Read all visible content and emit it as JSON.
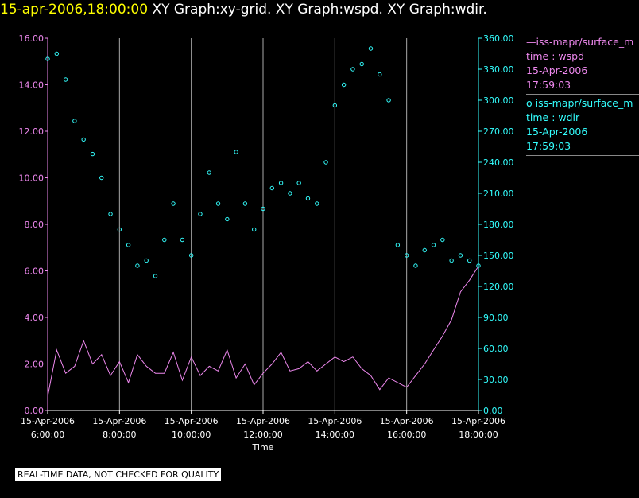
{
  "header": {
    "timestamp": "15-apr-2006,18:00:00",
    "titles": "XY Graph:xy-grid.  XY Graph:wspd.  XY Graph:wdir."
  },
  "legend": {
    "wspd": {
      "symbol": "—",
      "name": "iss-mapr/surface_m",
      "line2": "time : wspd",
      "line3": "15-Apr-2006",
      "line4": "17:59:03"
    },
    "wdir": {
      "symbol": "o",
      "name": "iss-mapr/surface_m",
      "line2": "time : wdir",
      "line3": "15-Apr-2006",
      "line4": "17:59:03"
    }
  },
  "disclaimer": "REAL-TIME DATA, NOT CHECKED FOR QUALITY",
  "colors": {
    "wspd": "#ee88ee",
    "wdir": "#33ffff",
    "grid": "#aaaaaa",
    "header_ts": "#ffff00"
  },
  "chart_data": {
    "type": "line",
    "xlabel": "Time",
    "x_tick_labels": [
      [
        "15-Apr-2006",
        "6:00:00"
      ],
      [
        "15-Apr-2006",
        "8:00:00"
      ],
      [
        "15-Apr-2006",
        "10:00:00"
      ],
      [
        "15-Apr-2006",
        "12:00:00"
      ],
      [
        "15-Apr-2006",
        "14:00:00"
      ],
      [
        "15-Apr-2006",
        "16:00:00"
      ],
      [
        "15-Apr-2006",
        "18:00:00"
      ]
    ],
    "x_hours": [
      6,
      8,
      10,
      12,
      14,
      16,
      18
    ],
    "xlim_hours": [
      6,
      18
    ],
    "y_left": {
      "ticks": [
        "0.00",
        "2.00",
        "4.00",
        "6.00",
        "8.00",
        "10.00",
        "12.00",
        "14.00",
        "16.00"
      ],
      "ylim": [
        0,
        16
      ]
    },
    "y_right": {
      "ticks": [
        "0.00",
        "30.00",
        "60.00",
        "90.00",
        "120.00",
        "150.00",
        "180.00",
        "210.00",
        "240.00",
        "270.00",
        "300.00",
        "330.00",
        "360.00"
      ],
      "ylim": [
        0,
        360
      ]
    },
    "grid": "vertical",
    "series": [
      {
        "name": "iss-mapr/surface_m — time : wspd",
        "style": "line",
        "axis": "left",
        "points": [
          [
            6.0,
            0.6
          ],
          [
            6.25,
            2.6
          ],
          [
            6.5,
            1.6
          ],
          [
            6.75,
            1.9
          ],
          [
            7.0,
            3.0
          ],
          [
            7.25,
            2.0
          ],
          [
            7.5,
            2.4
          ],
          [
            7.75,
            1.5
          ],
          [
            8.0,
            2.1
          ],
          [
            8.25,
            1.2
          ],
          [
            8.5,
            2.4
          ],
          [
            8.75,
            1.9
          ],
          [
            9.0,
            1.6
          ],
          [
            9.25,
            1.6
          ],
          [
            9.5,
            2.5
          ],
          [
            9.75,
            1.3
          ],
          [
            10.0,
            2.3
          ],
          [
            10.25,
            1.5
          ],
          [
            10.5,
            1.9
          ],
          [
            10.75,
            1.7
          ],
          [
            11.0,
            2.6
          ],
          [
            11.25,
            1.4
          ],
          [
            11.5,
            2.0
          ],
          [
            11.75,
            1.1
          ],
          [
            12.0,
            1.6
          ],
          [
            12.25,
            2.0
          ],
          [
            12.5,
            2.5
          ],
          [
            12.75,
            1.7
          ],
          [
            13.0,
            1.8
          ],
          [
            13.25,
            2.1
          ],
          [
            13.5,
            1.7
          ],
          [
            13.75,
            2.0
          ],
          [
            14.0,
            2.3
          ],
          [
            14.25,
            2.1
          ],
          [
            14.5,
            2.3
          ],
          [
            14.75,
            1.8
          ],
          [
            15.0,
            1.5
          ],
          [
            15.25,
            0.9
          ],
          [
            15.5,
            1.4
          ],
          [
            15.75,
            1.2
          ],
          [
            16.0,
            1.0
          ],
          [
            16.25,
            1.5
          ],
          [
            16.5,
            2.0
          ],
          [
            16.75,
            2.6
          ],
          [
            17.0,
            3.2
          ],
          [
            17.25,
            3.9
          ],
          [
            17.5,
            5.1
          ],
          [
            17.75,
            5.6
          ],
          [
            18.0,
            6.2
          ]
        ]
      },
      {
        "name": "iss-mapr/surface_m — time : wdir",
        "style": "scatter",
        "axis": "right",
        "points": [
          [
            6.0,
            340
          ],
          [
            6.25,
            345
          ],
          [
            6.5,
            320
          ],
          [
            6.75,
            280
          ],
          [
            7.0,
            262
          ],
          [
            7.25,
            248
          ],
          [
            7.5,
            225
          ],
          [
            7.75,
            190
          ],
          [
            8.0,
            175
          ],
          [
            8.25,
            160
          ],
          [
            8.5,
            140
          ],
          [
            8.75,
            145
          ],
          [
            9.0,
            130
          ],
          [
            9.25,
            165
          ],
          [
            9.5,
            200
          ],
          [
            9.75,
            165
          ],
          [
            10.0,
            150
          ],
          [
            10.25,
            190
          ],
          [
            10.5,
            230
          ],
          [
            10.75,
            200
          ],
          [
            11.0,
            185
          ],
          [
            11.25,
            250
          ],
          [
            11.5,
            200
          ],
          [
            11.75,
            175
          ],
          [
            12.0,
            195
          ],
          [
            12.25,
            215
          ],
          [
            12.5,
            220
          ],
          [
            12.75,
            210
          ],
          [
            13.0,
            220
          ],
          [
            13.25,
            205
          ],
          [
            13.5,
            200
          ],
          [
            13.75,
            240
          ],
          [
            14.0,
            295
          ],
          [
            14.25,
            315
          ],
          [
            14.5,
            330
          ],
          [
            14.75,
            335
          ],
          [
            15.0,
            350
          ],
          [
            15.25,
            325
          ],
          [
            15.5,
            300
          ],
          [
            15.75,
            160
          ],
          [
            16.0,
            150
          ],
          [
            16.25,
            140
          ],
          [
            16.5,
            155
          ],
          [
            16.75,
            160
          ],
          [
            17.0,
            165
          ],
          [
            17.25,
            145
          ],
          [
            17.5,
            150
          ],
          [
            17.75,
            145
          ],
          [
            18.0,
            140
          ]
        ]
      }
    ]
  }
}
